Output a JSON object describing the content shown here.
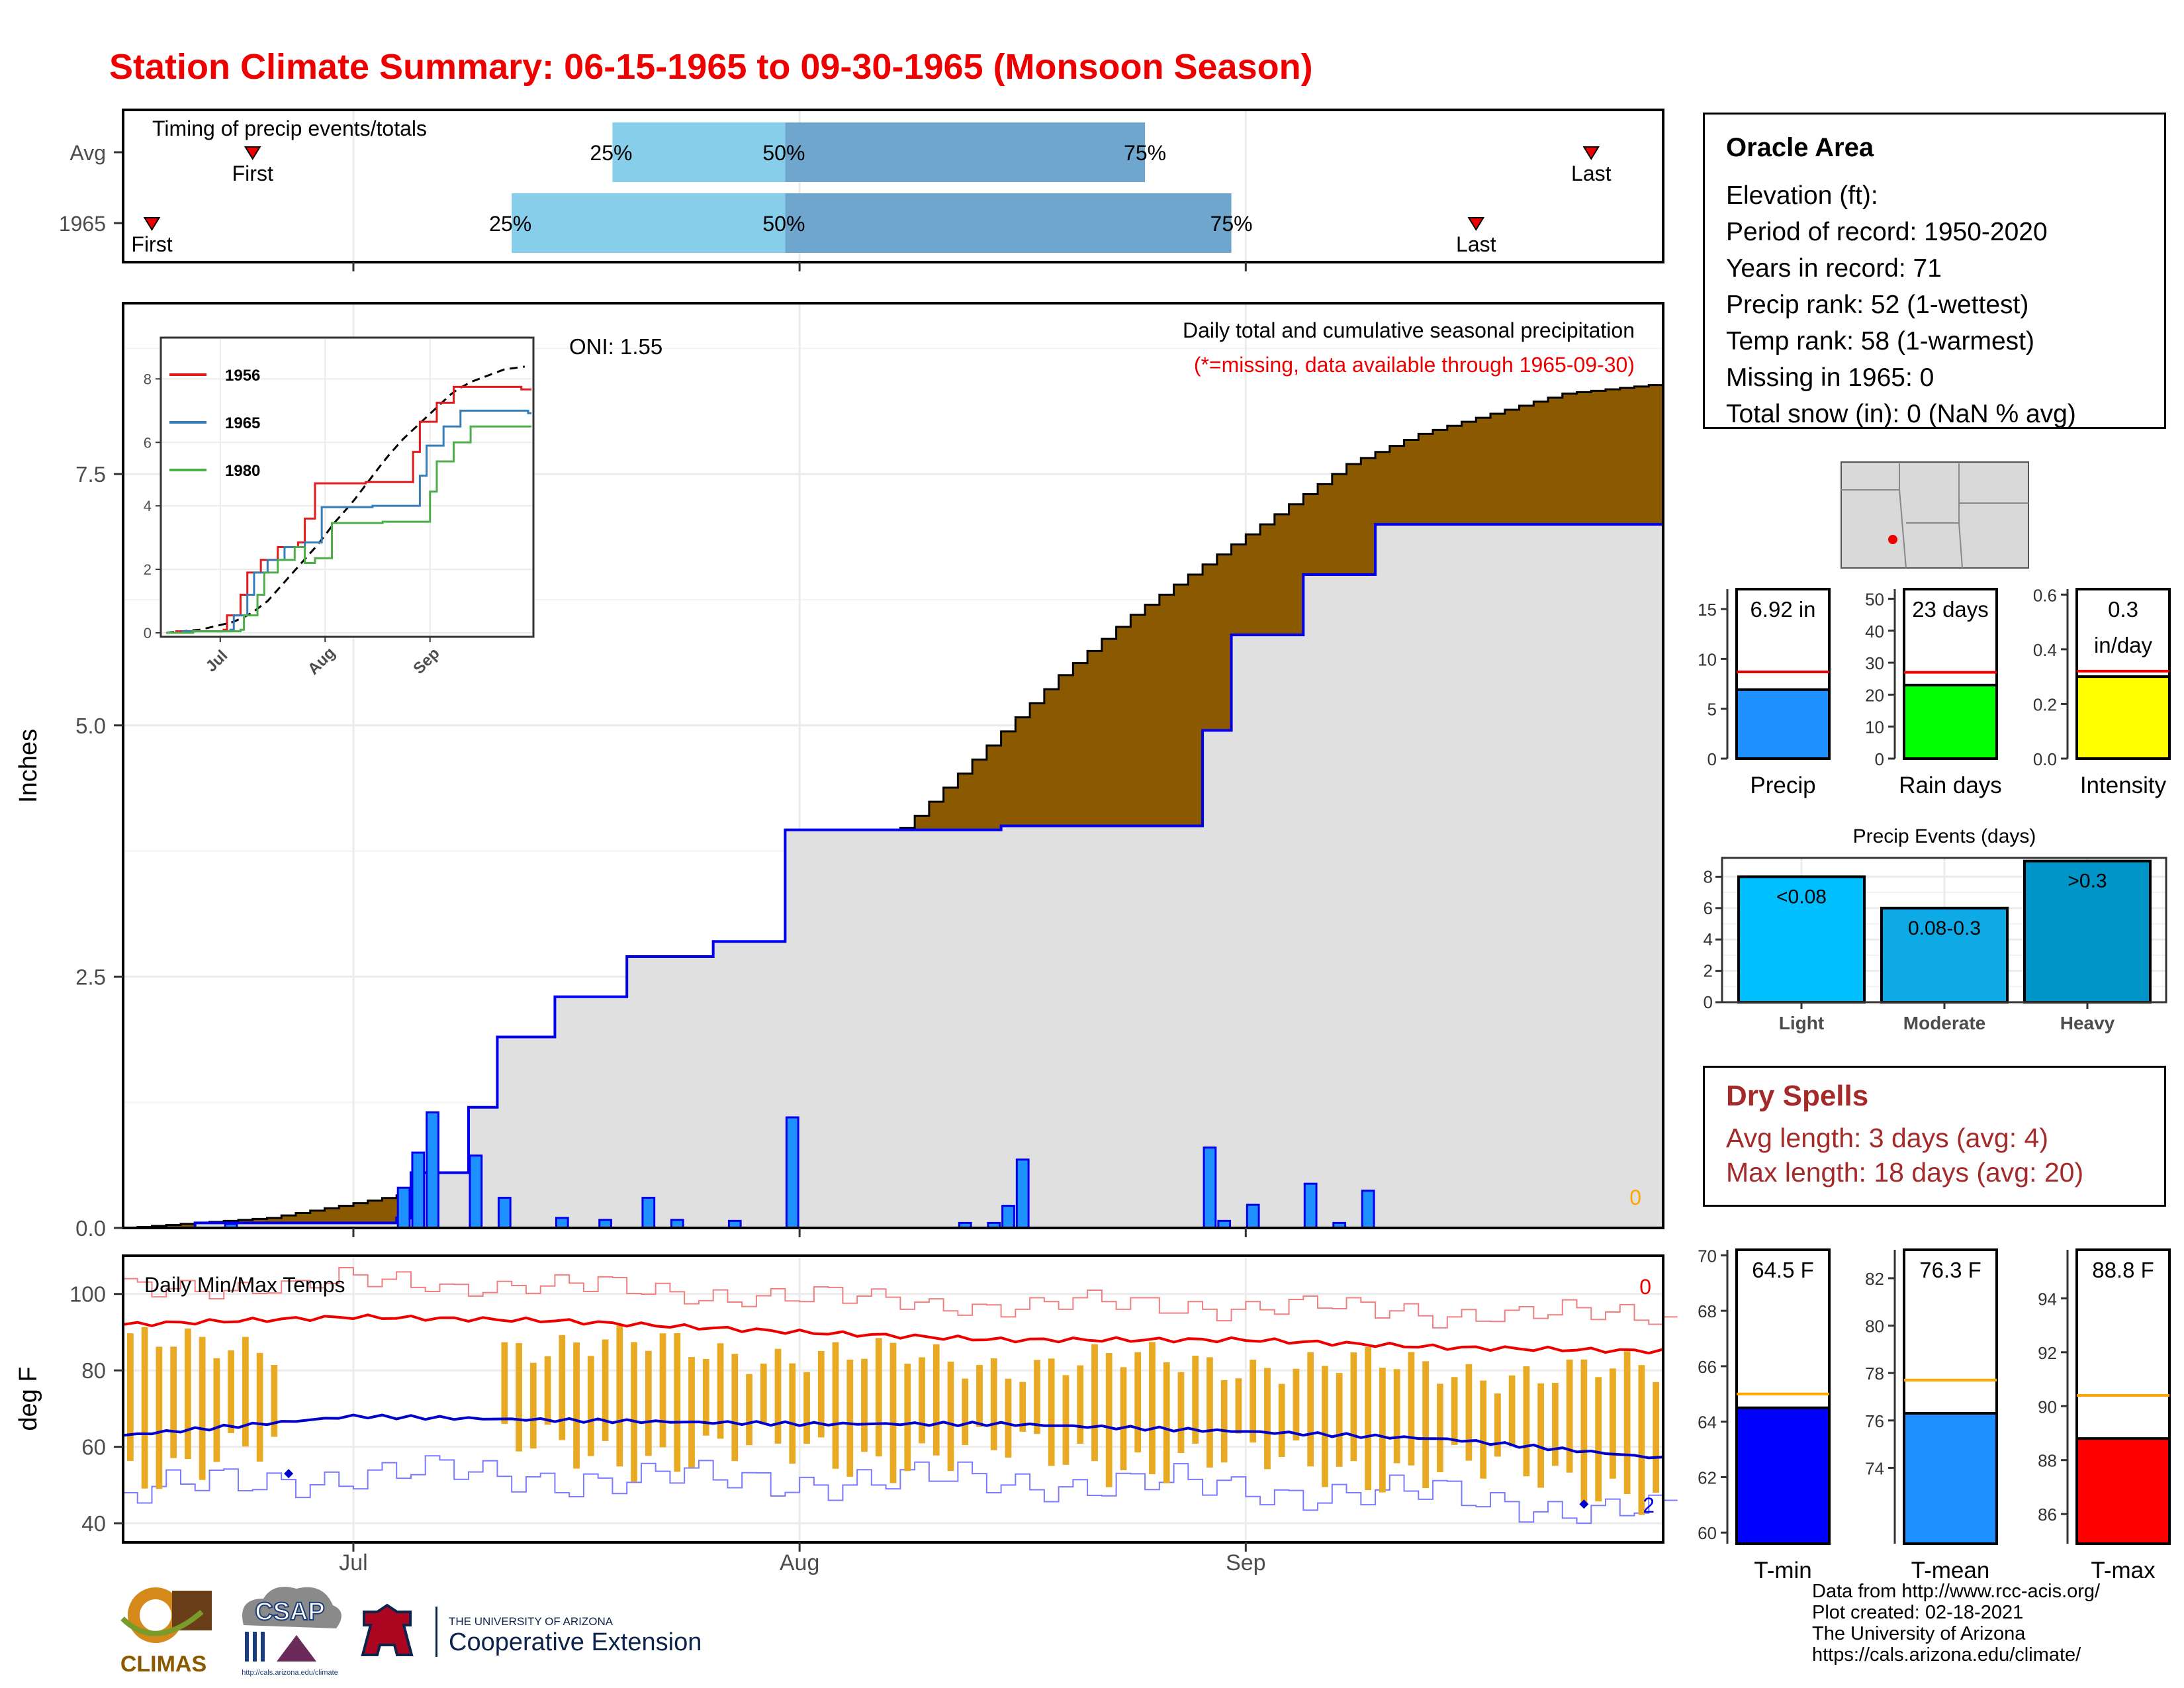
{
  "title": "Station Climate Summary: 06-15-1965 to 09-30-1965 (Monsoon Season)",
  "timing": {
    "title": "Timing of precip events/totals",
    "rows": [
      {
        "label": "Avg",
        "first_label": "First",
        "last_label": "Last",
        "first": "06-24",
        "p25": "07-19",
        "p50": "07-31",
        "p75": "08-25",
        "last": "09-25"
      },
      {
        "label": "1965",
        "first_label": "First",
        "last_label": "Last",
        "first": "06-17",
        "p25": "07-12",
        "p50": "07-31",
        "p75": "08-31",
        "last": "09-17"
      }
    ],
    "percentile_labels": [
      "25%",
      "50%",
      "75%"
    ],
    "colors": {
      "light": "#87ceeb",
      "dark": "#6fa6ce",
      "marker": "#ee0000"
    }
  },
  "x_axis": {
    "ticks": [
      "Jul",
      "Aug",
      "Sep"
    ]
  },
  "precip": {
    "ylabel": "Inches",
    "yticks": [
      "0.0",
      "2.5",
      "5.0",
      "7.5"
    ],
    "ylim": [
      0,
      9.2
    ],
    "title": "Daily total and cumulative seasonal precipitation",
    "subtitle": "(*=missing, data available through 1965-09-30)",
    "oni": "ONI: 1.55",
    "missing_count": "0",
    "colors": {
      "cum_avg": "#8b5a00",
      "cum_above": "#008a00",
      "year_line": "#0000ee",
      "daily_bar": "#1e90ff",
      "fill": "#e0e0e0"
    }
  },
  "inset": {
    "yticks": [
      "0",
      "2",
      "4",
      "6",
      "8"
    ],
    "xticks": [
      "Jul",
      "Aug",
      "Sep"
    ],
    "legend": [
      {
        "name": "1956",
        "color": "#e41a1c"
      },
      {
        "name": "1965",
        "color": "#377eb8"
      },
      {
        "name": "1980",
        "color": "#4daf4a"
      }
    ]
  },
  "temps": {
    "ylabel": "deg F",
    "title": "Daily Min/Max Temps",
    "yticks": [
      "40",
      "60",
      "80",
      "100"
    ],
    "ylim": [
      35,
      110
    ],
    "missing_max": "0",
    "missing_min": "2",
    "colors": {
      "max_avg": "#ee0000",
      "min_avg": "#0000cc",
      "range_bar": "#e8a923",
      "max_record": "#f08080",
      "min_record": "#7b7bff"
    }
  },
  "summary_bars": [
    {
      "name": "Precip",
      "value_label": "6.92 in",
      "value": 6.92,
      "avg": 8.7,
      "ylim": [
        0,
        17
      ],
      "yticks": [
        "0",
        "5",
        "10",
        "15"
      ],
      "ytick_values": [
        0,
        5,
        10,
        15
      ],
      "color": "#1e90ff"
    },
    {
      "name": "Rain days",
      "value_label": "23 days",
      "value": 23,
      "avg": 27,
      "ylim": [
        0,
        53
      ],
      "yticks": [
        "0",
        "10",
        "20",
        "30",
        "40",
        "50"
      ],
      "ytick_values": [
        0,
        10,
        20,
        30,
        40,
        50
      ],
      "color": "#00ff00"
    },
    {
      "name": "Intensity",
      "value_label": "0.3",
      "value_label2": "in/day",
      "value": 0.3,
      "avg": 0.32,
      "ylim": [
        0,
        0.62
      ],
      "yticks": [
        "0.0",
        "0.2",
        "0.4",
        "0.6"
      ],
      "ytick_values": [
        0,
        0.2,
        0.4,
        0.6
      ],
      "color": "#ffff00"
    }
  ],
  "events": {
    "title": "Precip Events (days)",
    "yticks": [
      "0",
      "2",
      "4",
      "6",
      "8"
    ],
    "ylim": [
      0,
      9.2
    ],
    "bars": [
      {
        "name": "Light",
        "label": "<0.08",
        "value": 8,
        "color": "#00bfff"
      },
      {
        "name": "Moderate",
        "label": "0.08-0.3",
        "value": 6,
        "color": "#0eaae6"
      },
      {
        "name": "Heavy",
        "label": ">0.3",
        "value": 9,
        "color": "#0095c8"
      }
    ]
  },
  "temp_bars": [
    {
      "name": "T-min",
      "value_label": "64.5 F",
      "value": 64.5,
      "avg": 65.0,
      "ylim": [
        59.6,
        70.2
      ],
      "yticks": [
        "60",
        "62",
        "64",
        "66",
        "68",
        "70"
      ],
      "ytick_values": [
        60,
        62,
        64,
        66,
        68,
        70
      ],
      "color": "#0000ff"
    },
    {
      "name": "T-mean",
      "value_label": "76.3 F",
      "value": 76.3,
      "avg": 77.7,
      "ylim": [
        70.8,
        83.2
      ],
      "yticks": [
        "74",
        "76",
        "78",
        "80",
        "82"
      ],
      "ytick_values": [
        74,
        76,
        78,
        80,
        82
      ],
      "color": "#1e90ff"
    },
    {
      "name": "T-max",
      "value_label": "88.8 F",
      "value": 88.8,
      "avg": 90.4,
      "ylim": [
        84.9,
        95.8
      ],
      "yticks": [
        "86",
        "88",
        "90",
        "92",
        "94"
      ],
      "ytick_values": [
        86,
        88,
        90,
        92,
        94
      ],
      "color": "#ff0000"
    }
  ],
  "station": {
    "name": "Oracle Area",
    "lines": [
      "Elevation (ft):",
      "Period of record: 1950-2020",
      "Years in record: 71",
      "Precip rank: 52 (1-wettest)",
      "Temp rank: 58 (1-warmest)",
      "Missing in 1965: 0",
      "Total snow (in): 0 (NaN % avg)"
    ]
  },
  "dry_spells": {
    "title": "Dry Spells",
    "avg_line": "Avg length: 3 days (avg: 4)",
    "max_line": "Max length: 18 days (avg: 20)"
  },
  "credits": [
    "Data from http://www.rcc-acis.org/",
    "Plot created: 02-18-2021",
    "The University of Arizona",
    "https://cals.arizona.edu/climate/"
  ],
  "logos": {
    "climas": "CLIMAS",
    "csap": "CSAP",
    "csap_url": "http://cals.arizona.edu/climate",
    "ua_top": "THE UNIVERSITY OF ARIZONA",
    "ua_bottom": "Cooperative Extension"
  },
  "chart_data": [
    {
      "type": "area",
      "title": "Daily total and cumulative seasonal precipitation",
      "ylabel": "Inches",
      "xlabel": "",
      "x_range": [
        "1965-06-15",
        "1965-09-30"
      ],
      "ylim": [
        0,
        9.2
      ],
      "cumulative_avg": {
        "x": [
          "06-15",
          "06-20",
          "06-25",
          "06-30",
          "07-05",
          "07-10",
          "07-15",
          "07-20",
          "07-25",
          "07-30",
          "08-04",
          "08-09",
          "08-14",
          "08-19",
          "08-24",
          "08-29",
          "09-03",
          "09-08",
          "09-13",
          "09-18",
          "09-23",
          "09-30"
        ],
        "values": [
          0.0,
          0.05,
          0.1,
          0.22,
          0.35,
          0.6,
          1.0,
          1.6,
          2.2,
          2.8,
          3.5,
          4.1,
          4.8,
          5.5,
          6.1,
          6.6,
          7.1,
          7.6,
          7.9,
          8.1,
          8.3,
          8.4
        ]
      },
      "cumulative_1965": {
        "x": [
          "06-15",
          "06-20",
          "07-04",
          "07-05",
          "07-09",
          "07-11",
          "07-15",
          "07-20",
          "07-26",
          "07-31",
          "08-15",
          "08-29",
          "08-31",
          "09-05",
          "09-10",
          "09-30"
        ],
        "values": [
          0.0,
          0.05,
          0.1,
          0.55,
          1.2,
          1.9,
          2.3,
          2.7,
          2.85,
          3.96,
          4.0,
          4.95,
          5.9,
          6.5,
          7.0,
          6.92
        ]
      },
      "daily_1965": {
        "x": [
          "06-22",
          "07-04",
          "07-05",
          "07-06",
          "07-09",
          "07-11",
          "07-15",
          "07-18",
          "07-21",
          "07-23",
          "07-27",
          "07-31",
          "08-12",
          "08-14",
          "08-15",
          "08-16",
          "08-29",
          "08-30",
          "09-01",
          "09-05",
          "09-07",
          "09-09"
        ],
        "values": [
          0.04,
          0.4,
          0.75,
          1.15,
          0.72,
          0.3,
          0.1,
          0.08,
          0.3,
          0.08,
          0.07,
          1.1,
          0.05,
          0.05,
          0.22,
          0.68,
          0.8,
          0.07,
          0.23,
          0.44,
          0.05,
          0.37
        ]
      }
    },
    {
      "type": "line",
      "title": "Daily Min/Max Temps",
      "ylabel": "deg F",
      "ylim": [
        35,
        110
      ],
      "series": [
        {
          "name": "",
          "x": [
            "06-15",
            "07-01",
            "07-15",
            "08-01",
            "08-15",
            "09-01",
            "09-15",
            "09-30"
          ],
          "values": [
            92,
            94,
            93,
            90,
            88,
            88,
            86,
            85
          ]
        },
        {
          "name": "",
          "x": [
            "06-15",
            "07-01",
            "07-15",
            "08-01",
            "08-15",
            "09-01",
            "09-15",
            "09-30"
          ],
          "values": [
            63,
            68,
            67,
            66,
            66,
            64,
            62,
            57
          ]
        }
      ]
    },
    {
      "type": "bar",
      "title": "Precip Events (days)",
      "categories": [
        "Light",
        "Moderate",
        "Heavy"
      ],
      "values": [
        8,
        6,
        9
      ]
    }
  ]
}
